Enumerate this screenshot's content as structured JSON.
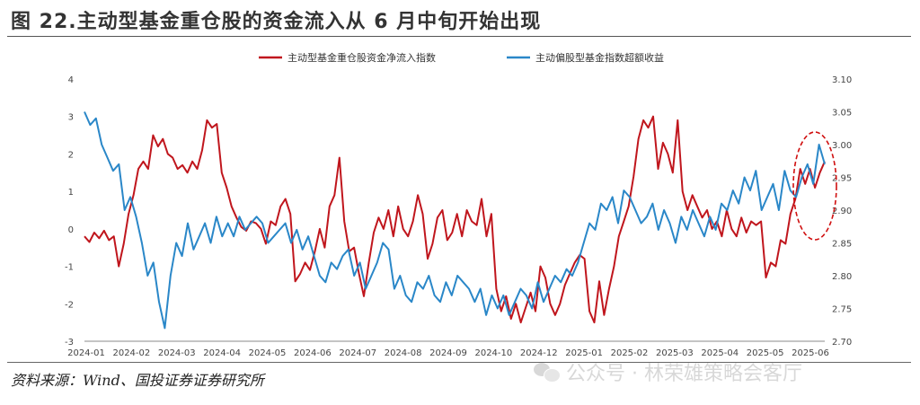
{
  "figure": {
    "title": "图 22.主动型基金重仓股的资金流入从 6 月中旬开始出现",
    "source": "资料来源：Wind、国投证券证券研究所",
    "watermark": "公众号 · 林荣雄策略会客厅"
  },
  "colors": {
    "red_series": "#c0161d",
    "blue_series": "#2a87c8",
    "highlight": "#d01010"
  },
  "chart_data": {
    "type": "line",
    "title": "",
    "xlabel": "",
    "ylabel": "",
    "legend_position": "top",
    "grid": false,
    "x_ticks": [
      "2024-01",
      "2024-02",
      "2024-03",
      "2024-04",
      "2024-05",
      "2024-06",
      "2024-07",
      "2024-08",
      "2024-09",
      "2024-10",
      "2024-12",
      "2025-01",
      "2025-02",
      "2025-03",
      "2025-04",
      "2025-05",
      "2025-06"
    ],
    "y_left": {
      "range": [
        -3,
        4
      ],
      "ticks": [
        "4",
        "3",
        "2",
        "1",
        "0",
        "-1",
        "-2",
        "-3"
      ]
    },
    "y_right": {
      "range": [
        2.7,
        3.1
      ],
      "ticks": [
        "3.10",
        "3.05",
        "3.00",
        "2.95",
        "2.90",
        "2.85",
        "2.80",
        "2.75",
        "2.70"
      ]
    },
    "series": [
      {
        "name": "主动型基金重仓股资金净流入指数",
        "axis": "left",
        "color": "#c0161d",
        "values": [
          -0.2,
          -0.35,
          -0.1,
          -0.25,
          -0.05,
          -0.3,
          -0.2,
          -1.0,
          -0.4,
          0.4,
          0.9,
          1.6,
          1.8,
          1.6,
          2.5,
          2.2,
          2.4,
          2.0,
          1.9,
          1.6,
          1.7,
          1.5,
          1.8,
          1.6,
          2.1,
          2.9,
          2.7,
          2.8,
          1.5,
          1.1,
          0.6,
          0.3,
          0.05,
          -0.05,
          0.2,
          0.15,
          0.0,
          -0.4,
          0.2,
          0.1,
          0.6,
          0.8,
          0.4,
          -1.4,
          -1.2,
          -0.9,
          -1.1,
          -0.6,
          0.0,
          -0.5,
          0.6,
          0.9,
          1.9,
          0.2,
          -0.6,
          -0.5,
          -1.2,
          -1.8,
          -0.9,
          -0.1,
          0.3,
          0.0,
          0.5,
          -0.2,
          0.6,
          0.0,
          -0.2,
          0.2,
          0.9,
          0.4,
          -0.8,
          -0.4,
          0.3,
          0.5,
          -0.3,
          -0.1,
          0.4,
          -0.2,
          0.5,
          0.2,
          0.1,
          0.8,
          -0.2,
          0.4,
          -1.6,
          -2.2,
          -1.8,
          -2.4,
          -2.0,
          -2.5,
          -2.1,
          -1.7,
          -2.2,
          -1.0,
          -1.3,
          -2.0,
          -2.3,
          -2.0,
          -1.5,
          -1.2,
          -0.9,
          -0.7,
          -0.8,
          -2.2,
          -2.5,
          -1.4,
          -2.3,
          -1.6,
          -1.0,
          -0.2,
          0.2,
          0.6,
          1.4,
          2.4,
          2.9,
          2.7,
          3.0,
          1.6,
          2.3,
          2.0,
          1.5,
          2.9,
          1.0,
          0.5,
          0.9,
          0.6,
          0.3,
          0.5,
          0.0,
          0.2,
          -0.2,
          0.5,
          0.0,
          -0.2,
          0.3,
          -0.1,
          0.2,
          0.1,
          0.2,
          -1.3,
          -0.9,
          -1.0,
          -0.3,
          -0.4,
          0.4,
          0.8,
          1.6,
          1.2,
          1.6,
          1.1,
          1.5,
          1.8
        ],
        "x_range_months_from_2024_01": [
          0,
          17.6
        ]
      },
      {
        "name": "主动偏股型基金指数超额收益",
        "axis": "right",
        "color": "#2a87c8",
        "values": [
          3.05,
          3.03,
          3.04,
          3.0,
          2.98,
          2.96,
          2.97,
          2.9,
          2.92,
          2.89,
          2.85,
          2.8,
          2.82,
          2.76,
          2.72,
          2.8,
          2.85,
          2.83,
          2.88,
          2.84,
          2.86,
          2.88,
          2.85,
          2.89,
          2.86,
          2.88,
          2.86,
          2.89,
          2.87,
          2.88,
          2.89,
          2.88,
          2.85,
          2.86,
          2.87,
          2.88,
          2.85,
          2.87,
          2.84,
          2.86,
          2.83,
          2.8,
          2.79,
          2.82,
          2.81,
          2.83,
          2.84,
          2.8,
          2.82,
          2.78,
          2.8,
          2.82,
          2.85,
          2.84,
          2.78,
          2.8,
          2.77,
          2.76,
          2.79,
          2.78,
          2.8,
          2.77,
          2.76,
          2.79,
          2.77,
          2.8,
          2.79,
          2.78,
          2.76,
          2.78,
          2.74,
          2.77,
          2.75,
          2.77,
          2.74,
          2.76,
          2.78,
          2.77,
          2.75,
          2.79,
          2.76,
          2.78,
          2.8,
          2.79,
          2.81,
          2.8,
          2.82,
          2.85,
          2.88,
          2.87,
          2.91,
          2.9,
          2.92,
          2.88,
          2.93,
          2.92,
          2.9,
          2.88,
          2.89,
          2.91,
          2.87,
          2.9,
          2.88,
          2.85,
          2.89,
          2.87,
          2.9,
          2.88,
          2.86,
          2.89,
          2.87,
          2.91,
          2.9,
          2.93,
          2.91,
          2.95,
          2.93,
          2.96,
          2.9,
          2.92,
          2.94,
          2.9,
          2.96,
          2.93,
          2.92,
          2.95,
          2.97,
          2.94,
          3.0,
          2.97
        ],
        "x_range_months_from_2024_01": [
          0,
          17.6
        ]
      }
    ]
  }
}
